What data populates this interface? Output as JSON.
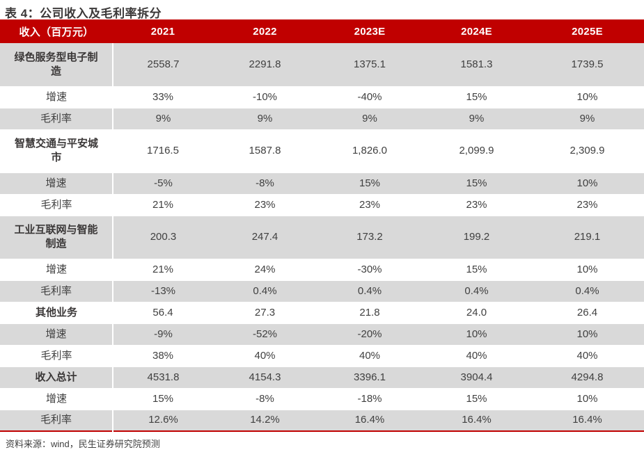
{
  "title": "表 4：公司收入及毛利率拆分",
  "source": "资料来源：wind，民生证券研究院预测",
  "colors": {
    "header_bg": "#C00000",
    "accent_red": "#C00000",
    "row_shade": "#D9D9D9",
    "text": "#404040"
  },
  "table": {
    "columns": [
      "收入（百万元）",
      "2021",
      "2022",
      "2023E",
      "2024E",
      "2025E"
    ],
    "rows": [
      {
        "label": "绿色服务型电子制造",
        "type": "segment",
        "values": [
          "2558.7",
          "2291.8",
          "1375.1",
          "1581.3",
          "1739.5"
        ]
      },
      {
        "label": "增速",
        "type": "metric",
        "values": [
          "33%",
          "-10%",
          "-40%",
          "15%",
          "10%"
        ]
      },
      {
        "label": "毛利率",
        "type": "metric",
        "values": [
          "9%",
          "9%",
          "9%",
          "9%",
          "9%"
        ]
      },
      {
        "label": "智慧交通与平安城市",
        "type": "segment",
        "values": [
          "1716.5",
          "1587.8",
          "1,826.0",
          "2,099.9",
          "2,309.9"
        ]
      },
      {
        "label": "增速",
        "type": "metric",
        "values": [
          "-5%",
          "-8%",
          "15%",
          "15%",
          "10%"
        ]
      },
      {
        "label": "毛利率",
        "type": "metric",
        "values": [
          "21%",
          "23%",
          "23%",
          "23%",
          "23%"
        ]
      },
      {
        "label": "工业互联网与智能制造",
        "type": "segment",
        "values": [
          "200.3",
          "247.4",
          "173.2",
          "199.2",
          "219.1"
        ]
      },
      {
        "label": "增速",
        "type": "metric",
        "values": [
          "21%",
          "24%",
          "-30%",
          "15%",
          "10%"
        ]
      },
      {
        "label": "毛利率",
        "type": "metric",
        "values": [
          "-13%",
          "0.4%",
          "0.4%",
          "0.4%",
          "0.4%"
        ]
      },
      {
        "label": "其他业务",
        "type": "segment",
        "values": [
          "56.4",
          "27.3",
          "21.8",
          "24.0",
          "26.4"
        ]
      },
      {
        "label": "增速",
        "type": "metric",
        "values": [
          "-9%",
          "-52%",
          "-20%",
          "10%",
          "10%"
        ]
      },
      {
        "label": "毛利率",
        "type": "metric",
        "values": [
          "38%",
          "40%",
          "40%",
          "40%",
          "40%"
        ]
      },
      {
        "label": "收入总计",
        "type": "total",
        "values": [
          "4531.8",
          "4154.3",
          "3396.1",
          "3904.4",
          "4294.8"
        ]
      },
      {
        "label": "增速",
        "type": "metric",
        "values": [
          "15%",
          "-8%",
          "-18%",
          "15%",
          "10%"
        ]
      },
      {
        "label": "毛利率",
        "type": "metric",
        "values": [
          "12.6%",
          "14.2%",
          "16.4%",
          "16.4%",
          "16.4%"
        ]
      }
    ]
  }
}
